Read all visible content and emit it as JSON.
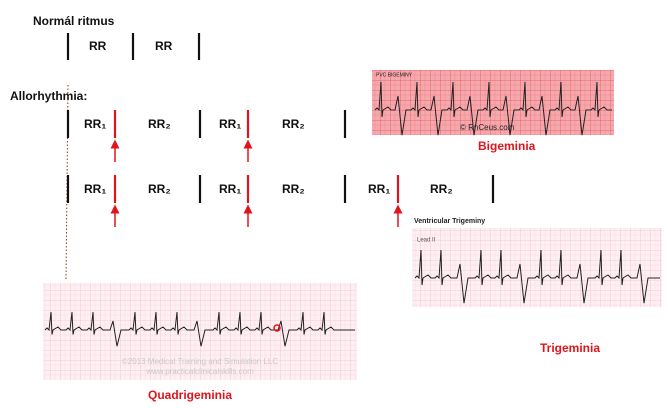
{
  "normal": {
    "title": "Normál ritmus",
    "intervals": [
      "RR",
      "RR"
    ]
  },
  "allorhythmia": {
    "title": "Allorhythmia:",
    "rows": [
      [
        "RR₁",
        "RR₂",
        "RR₁",
        "RR₂"
      ],
      [
        "RR₁",
        "RR₂",
        "RR₁",
        "RR₂",
        "RR₁",
        "RR₂"
      ]
    ]
  },
  "strips": {
    "bigeminy": {
      "header": "PVC BIGEMINY",
      "credit": "© RnCeus.com",
      "caption": "Bigeminia"
    },
    "trigeminy": {
      "header": "Ventricular Trigeminy",
      "lead": "Lead II",
      "caption": "Trigeminia"
    },
    "quadrigeminy": {
      "credit": "©2013 Medical Training and Simulation LLC",
      "url": "www.practicalclinicalskills.com",
      "caption": "Quadrigeminia"
    }
  }
}
